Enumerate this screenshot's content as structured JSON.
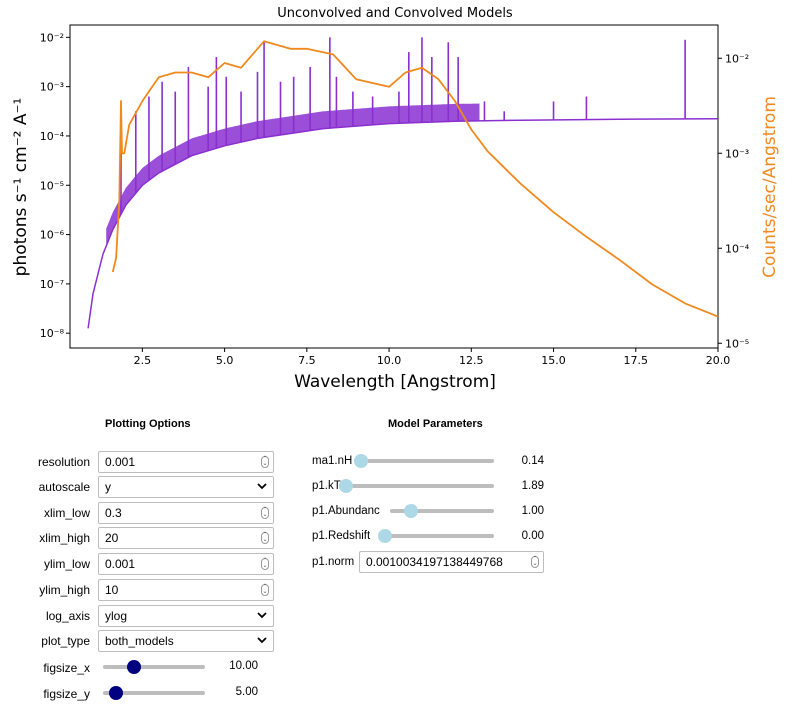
{
  "chart_data": {
    "type": "line",
    "title": "Unconvolved and Convolved Models",
    "xlabel": "Wavelength [Angstrom]",
    "ylabel_left": "photons s⁻¹ cm⁻² A⁻¹",
    "ylabel_right": "Counts/sec/Angstrom",
    "xlim": [
      0.3,
      20
    ],
    "ylim_left_log10": [
      -8.3,
      -1.75
    ],
    "ylim_right_log10": [
      -5.05,
      -1.65
    ],
    "x_ticks": [
      "2.5",
      "5.0",
      "7.5",
      "10.0",
      "12.5",
      "15.0",
      "17.5",
      "20.0"
    ],
    "x_tick_values": [
      2.5,
      5.0,
      7.5,
      10.0,
      12.5,
      15.0,
      17.5,
      20.0
    ],
    "y_left_ticks": [
      "10⁻⁸",
      "10⁻⁷",
      "10⁻⁶",
      "10⁻⁵",
      "10⁻⁴",
      "10⁻³",
      "10⁻²"
    ],
    "y_left_tick_exp": [
      -8,
      -7,
      -6,
      -5,
      -4,
      -3,
      -2
    ],
    "y_right_ticks": [
      "10⁻⁵",
      "10⁻⁴",
      "10⁻³",
      "10⁻²"
    ],
    "y_right_tick_exp": [
      -5,
      -4,
      -3,
      -2
    ],
    "series": [
      {
        "name": "unconvolved",
        "color": "#8a2fd0",
        "continuum_x": [
          0.85,
          1.0,
          1.3,
          1.6,
          2.0,
          2.5,
          3.0,
          4.0,
          5.0,
          6.0,
          8.0,
          10.0,
          12.0,
          14.0,
          17.0,
          20.0
        ],
        "continuum_log10y": [
          -7.9,
          -7.2,
          -6.4,
          -5.9,
          -5.4,
          -5.0,
          -4.75,
          -4.4,
          -4.2,
          -4.05,
          -3.85,
          -3.75,
          -3.7,
          -3.68,
          -3.66,
          -3.65
        ],
        "lines": [
          {
            "x": 1.85,
            "log10y": -4.1
          },
          {
            "x": 2.3,
            "log10y": -3.5
          },
          {
            "x": 2.7,
            "log10y": -3.2
          },
          {
            "x": 3.1,
            "log10y": -2.9
          },
          {
            "x": 3.5,
            "log10y": -3.1
          },
          {
            "x": 3.9,
            "log10y": -2.6
          },
          {
            "x": 4.5,
            "log10y": -3.0
          },
          {
            "x": 4.75,
            "log10y": -2.4
          },
          {
            "x": 5.05,
            "log10y": -2.8
          },
          {
            "x": 5.5,
            "log10y": -3.1
          },
          {
            "x": 6.0,
            "log10y": -2.7
          },
          {
            "x": 6.2,
            "log10y": -2.1
          },
          {
            "x": 6.7,
            "log10y": -2.9
          },
          {
            "x": 7.1,
            "log10y": -2.8
          },
          {
            "x": 7.6,
            "log10y": -2.6
          },
          {
            "x": 8.2,
            "log10y": -2.0
          },
          {
            "x": 8.4,
            "log10y": -2.8
          },
          {
            "x": 8.9,
            "log10y": -3.1
          },
          {
            "x": 9.5,
            "log10y": -3.2
          },
          {
            "x": 10.3,
            "log10y": -3.1
          },
          {
            "x": 10.6,
            "log10y": -2.3
          },
          {
            "x": 11.0,
            "log10y": -2.0
          },
          {
            "x": 11.3,
            "log10y": -2.4
          },
          {
            "x": 11.8,
            "log10y": -2.1
          },
          {
            "x": 12.1,
            "log10y": -2.4
          },
          {
            "x": 12.9,
            "log10y": -3.3
          },
          {
            "x": 13.5,
            "log10y": -3.5
          },
          {
            "x": 15.0,
            "log10y": -3.3
          },
          {
            "x": 16.0,
            "log10y": -3.2
          },
          {
            "x": 19.0,
            "log10y": -2.05
          }
        ]
      },
      {
        "name": "convolved",
        "color": "#f0891e",
        "x": [
          1.6,
          1.7,
          1.8,
          1.85,
          1.88,
          1.95,
          2.1,
          2.5,
          3.0,
          3.5,
          4.0,
          4.5,
          5.0,
          5.5,
          6.0,
          6.2,
          7.0,
          7.5,
          8.3,
          9.0,
          10.0,
          10.5,
          11.0,
          11.5,
          12.0,
          12.5,
          13.0,
          14.0,
          15.0,
          16.0,
          17.0,
          18.0,
          19.0,
          20.0
        ],
        "log10y": [
          -4.25,
          -4.1,
          -3.5,
          -2.45,
          -3.0,
          -3.0,
          -2.7,
          -2.45,
          -2.2,
          -2.15,
          -2.15,
          -2.2,
          -2.05,
          -2.1,
          -1.9,
          -1.82,
          -1.9,
          -1.9,
          -1.96,
          -2.22,
          -2.3,
          -2.15,
          -2.1,
          -2.22,
          -2.45,
          -2.75,
          -2.98,
          -3.32,
          -3.62,
          -3.88,
          -4.12,
          -4.38,
          -4.58,
          -4.72
        ]
      }
    ]
  },
  "plotting_options": {
    "title": "Plotting Options",
    "resolution": {
      "label": "resolution",
      "value": "0.001"
    },
    "autoscale": {
      "label": "autoscale",
      "value": "y"
    },
    "xlim_low": {
      "label": "xlim_low",
      "value": "0.3"
    },
    "xlim_high": {
      "label": "xlim_high",
      "value": "20"
    },
    "ylim_low": {
      "label": "ylim_low",
      "value": "0.001"
    },
    "ylim_high": {
      "label": "ylim_high",
      "value": "10"
    },
    "log_axis": {
      "label": "log_axis",
      "value": "ylog"
    },
    "plot_type": {
      "label": "plot_type",
      "value": "both_models"
    },
    "figsize_x": {
      "label": "figsize_x",
      "value": "10.00",
      "fraction": 0.3
    },
    "figsize_y": {
      "label": "figsize_y",
      "value": "5.00",
      "fraction": 0.13
    }
  },
  "model_parameters": {
    "title": "Model Parameters",
    "ma1_nH": {
      "label": "ma1.nH",
      "value": "0.14",
      "fraction": 0.0
    },
    "p1_kT": {
      "label": "p1.kT",
      "value": "1.89",
      "fraction": 0.0
    },
    "p1_Abundanc": {
      "label": "p1.Abundanc",
      "value": "1.00",
      "fraction": 0.2
    },
    "p1_Redshift": {
      "label": "p1.Redshift",
      "value": "0.00",
      "fraction": 0.0
    },
    "p1_norm": {
      "label": "p1.norm",
      "value": "0.0010034197138449768"
    }
  },
  "colors": {
    "unconvolved": "#8a2fd0",
    "convolved": "#f0891e",
    "slider_thumb_blue": "#000080",
    "slider_thumb_light": "#add8e6"
  }
}
